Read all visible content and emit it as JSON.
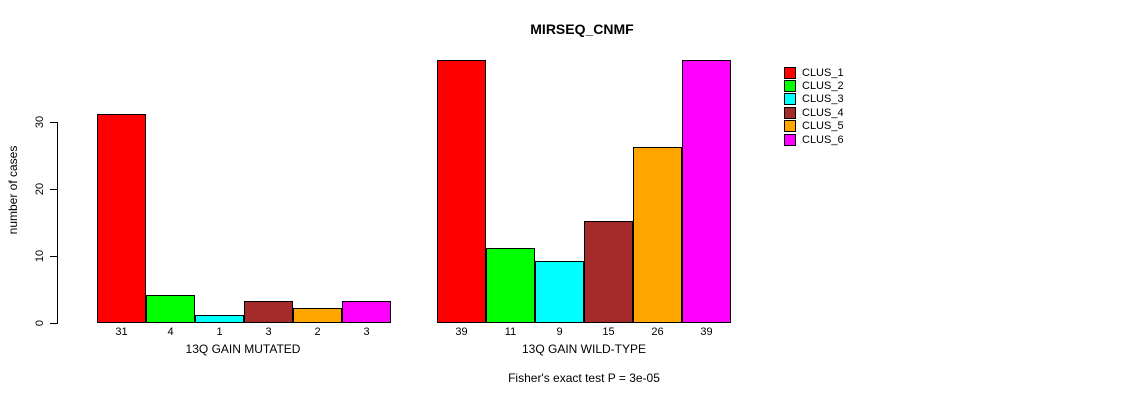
{
  "chart_data": {
    "type": "bar",
    "title": "MIRSEQ_CNMF",
    "categories": [
      "13Q GAIN MUTATED",
      "13Q GAIN WILD-TYPE"
    ],
    "series": [
      {
        "name": "CLUS_1",
        "color": "#FF0000",
        "values": [
          31,
          39
        ]
      },
      {
        "name": "CLUS_2",
        "color": "#00FF00",
        "values": [
          4,
          11
        ]
      },
      {
        "name": "CLUS_3",
        "color": "#00FFFF",
        "values": [
          1,
          9
        ]
      },
      {
        "name": "CLUS_4",
        "color": "#A52A2A",
        "values": [
          3,
          15
        ]
      },
      {
        "name": "CLUS_5",
        "color": "#FFA500",
        "values": [
          2,
          26
        ]
      },
      {
        "name": "CLUS_6",
        "color": "#FF00FF",
        "values": [
          3,
          39
        ]
      }
    ],
    "ylabel": "number of cases",
    "xlabel": "",
    "yticks": [
      0,
      10,
      20,
      30
    ],
    "ylim": [
      0,
      39.5
    ],
    "grid": false,
    "legend_position": "top-right",
    "value_labels": true,
    "bar_border_color": "#000000",
    "background_color": "#FFFFFF",
    "annotation": "Fisher's exact test P = 3e-05"
  }
}
